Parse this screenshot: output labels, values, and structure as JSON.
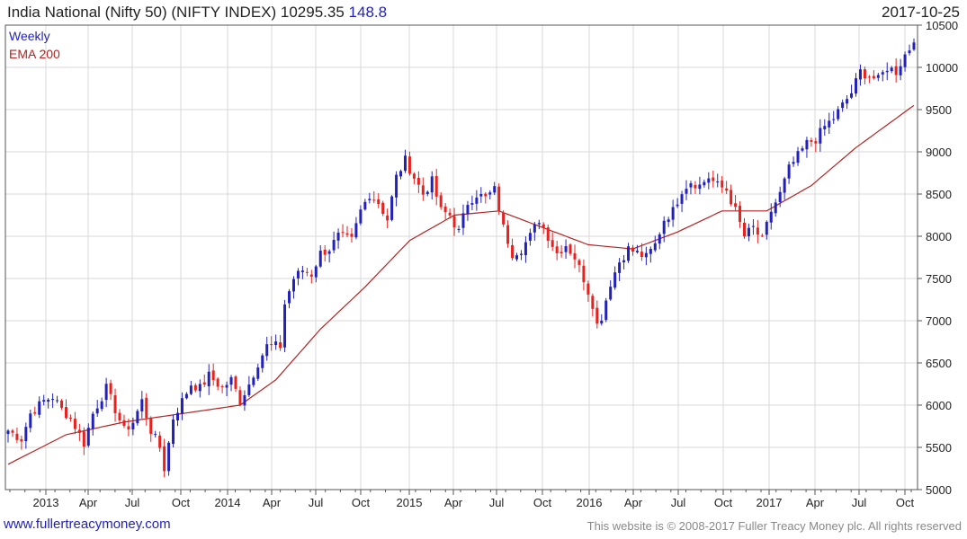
{
  "header": {
    "title_main": "India National (Nifty 50) (NIFTY INDEX) 10295.35",
    "title_change": "148.8",
    "date": "2017-10-25"
  },
  "footer": {
    "left": "www.fullertreacymoney.com",
    "right": "This website is © 2008-2017 Fuller Treacy Money plc. All rights reserved"
  },
  "colors": {
    "up": "#2222bb",
    "down": "#e8211f",
    "ema": "#b22222",
    "grid": "#d9d9d9",
    "axis": "#555555"
  },
  "chart_data": {
    "type": "candlestick",
    "title": "India National (Nifty 50) (NIFTY INDEX)",
    "interval": "Weekly",
    "legend": [
      "Weekly",
      "EMA 200"
    ],
    "ylim": [
      5000,
      10500
    ],
    "y_ticks": [
      5000,
      5500,
      6000,
      6500,
      7000,
      7500,
      8000,
      8500,
      9000,
      9500,
      10000,
      10500
    ],
    "x_ticks": [
      "2013",
      "Apr",
      "Jul",
      "Oct",
      "2014",
      "Apr",
      "Jul",
      "Oct",
      "2015",
      "Apr",
      "Jul",
      "Oct",
      "2016",
      "Apr",
      "Jul",
      "Oct",
      "2017",
      "Apr",
      "Jul",
      "Oct"
    ],
    "close_path": [
      [
        0,
        5700
      ],
      [
        3,
        5600
      ],
      [
        5,
        5900
      ],
      [
        8,
        6050
      ],
      [
        10,
        6100
      ],
      [
        12,
        5950
      ],
      [
        14,
        5850
      ],
      [
        17,
        5550
      ],
      [
        19,
        5900
      ],
      [
        22,
        6200
      ],
      [
        24,
        5950
      ],
      [
        26,
        5700
      ],
      [
        28,
        5800
      ],
      [
        30,
        6050
      ],
      [
        32,
        5700
      ],
      [
        34,
        5500
      ],
      [
        35,
        5250
      ],
      [
        37,
        5850
      ],
      [
        39,
        6050
      ],
      [
        41,
        6250
      ],
      [
        43,
        6200
      ],
      [
        45,
        6350
      ],
      [
        48,
        6200
      ],
      [
        50,
        6300
      ],
      [
        52,
        6050
      ],
      [
        54,
        6250
      ],
      [
        56,
        6500
      ],
      [
        58,
        6700
      ],
      [
        61,
        6700
      ],
      [
        62,
        7200
      ],
      [
        64,
        7500
      ],
      [
        66,
        7600
      ],
      [
        68,
        7550
      ],
      [
        70,
        7800
      ],
      [
        72,
        7850
      ],
      [
        74,
        8000
      ],
      [
        77,
        7950
      ],
      [
        79,
        8300
      ],
      [
        81,
        8500
      ],
      [
        83,
        8400
      ],
      [
        85,
        8200
      ],
      [
        87,
        8700
      ],
      [
        89,
        8900
      ],
      [
        91,
        8700
      ],
      [
        93,
        8500
      ],
      [
        95,
        8650
      ],
      [
        97,
        8300
      ],
      [
        99,
        8250
      ],
      [
        101,
        8050
      ],
      [
        103,
        8400
      ],
      [
        105,
        8500
      ],
      [
        107,
        8450
      ],
      [
        109,
        8550
      ],
      [
        111,
        8100
      ],
      [
        113,
        7800
      ],
      [
        115,
        7850
      ],
      [
        117,
        8000
      ],
      [
        119,
        8200
      ],
      [
        121,
        8000
      ],
      [
        123,
        7800
      ],
      [
        125,
        7900
      ],
      [
        127,
        7750
      ],
      [
        129,
        7500
      ],
      [
        131,
        7200
      ],
      [
        132,
        6950
      ],
      [
        133,
        7050
      ],
      [
        135,
        7450
      ],
      [
        137,
        7700
      ],
      [
        139,
        7850
      ],
      [
        141,
        7800
      ],
      [
        143,
        7750
      ],
      [
        145,
        7900
      ],
      [
        147,
        8200
      ],
      [
        149,
        8300
      ],
      [
        151,
        8550
      ],
      [
        153,
        8650
      ],
      [
        155,
        8600
      ],
      [
        157,
        8700
      ],
      [
        159,
        8600
      ],
      [
        161,
        8550
      ],
      [
        163,
        8300
      ],
      [
        165,
        8000
      ],
      [
        167,
        8100
      ],
      [
        169,
        7950
      ],
      [
        171,
        8300
      ],
      [
        173,
        8500
      ],
      [
        175,
        8800
      ],
      [
        177,
        8950
      ],
      [
        179,
        9100
      ],
      [
        181,
        9150
      ],
      [
        183,
        9300
      ],
      [
        185,
        9400
      ],
      [
        187,
        9550
      ],
      [
        189,
        9700
      ],
      [
        191,
        9950
      ],
      [
        193,
        9900
      ],
      [
        195,
        9850
      ],
      [
        197,
        10000
      ],
      [
        199,
        9950
      ],
      [
        201,
        10150
      ],
      [
        203,
        10295
      ]
    ],
    "ema_200": [
      [
        0,
        5300
      ],
      [
        13,
        5650
      ],
      [
        26,
        5800
      ],
      [
        39,
        5900
      ],
      [
        52,
        6000
      ],
      [
        60,
        6300
      ],
      [
        70,
        6900
      ],
      [
        80,
        7400
      ],
      [
        90,
        7950
      ],
      [
        100,
        8250
      ],
      [
        110,
        8300
      ],
      [
        120,
        8100
      ],
      [
        130,
        7900
      ],
      [
        140,
        7850
      ],
      [
        150,
        8050
      ],
      [
        160,
        8300
      ],
      [
        170,
        8300
      ],
      [
        180,
        8600
      ],
      [
        190,
        9050
      ],
      [
        203,
        9550
      ]
    ],
    "last_value": 10295.35,
    "change": 148.8
  }
}
